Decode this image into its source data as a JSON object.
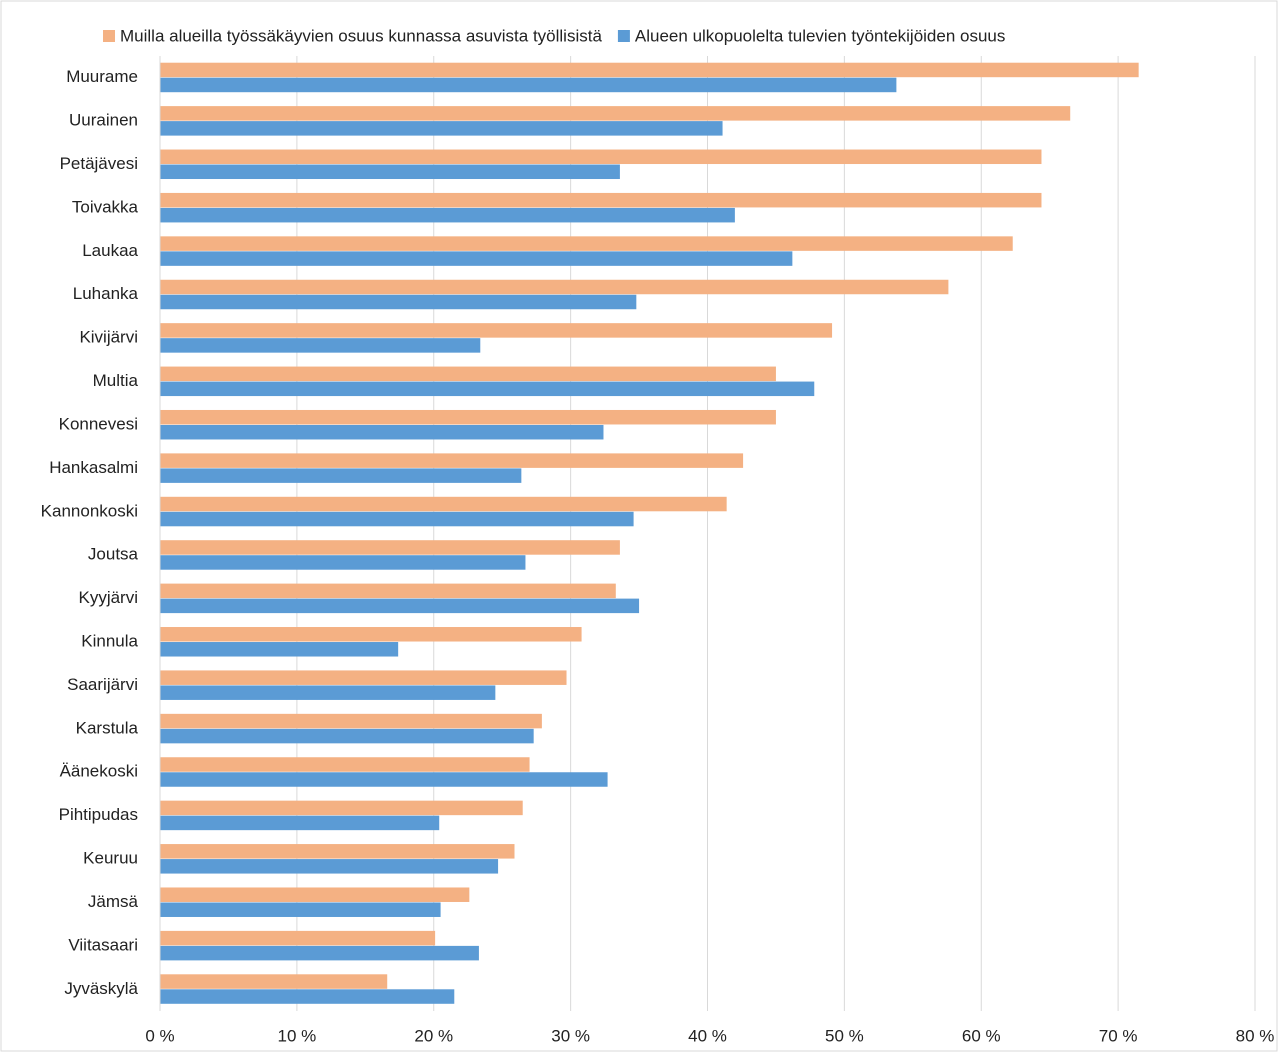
{
  "chart_data": {
    "type": "hbar",
    "categories": [
      "Muurame",
      "Uurainen",
      "Petäjävesi",
      "Toivakka",
      "Laukaa",
      "Luhanka",
      "Kivijärvi",
      "Multia",
      "Konnevesi",
      "Hankasalmi",
      "Kannonkoski",
      "Joutsa",
      "Kyyjärvi",
      "Kinnula",
      "Saarijärvi",
      "Karstula",
      "Äänekoski",
      "Pihtipudas",
      "Keuruu",
      "Jämsä",
      "Viitasaari",
      "Jyväskylä"
    ],
    "series": [
      {
        "name": "Muilla alueilla työssäkäyvien osuus kunnassa asuvista työllisistä",
        "color": "#f4b183",
        "values": [
          71.5,
          66.5,
          64.4,
          64.4,
          62.3,
          57.6,
          49.1,
          45.0,
          45.0,
          42.6,
          41.4,
          33.6,
          33.3,
          30.8,
          29.7,
          27.9,
          27.0,
          26.5,
          25.9,
          22.6,
          20.1,
          16.6
        ]
      },
      {
        "name": "Alueen ulkopuolelta tulevien työntekijöiden osuus",
        "color": "#5b9bd5",
        "values": [
          53.8,
          41.1,
          33.6,
          42.0,
          46.2,
          34.8,
          23.4,
          47.8,
          32.4,
          26.4,
          34.6,
          26.7,
          35.0,
          17.4,
          24.5,
          27.3,
          32.7,
          20.4,
          24.7,
          20.5,
          23.3,
          21.5
        ]
      }
    ],
    "xlim": [
      0,
      80
    ],
    "xticks": [
      {
        "value": 0,
        "label": "0 %"
      },
      {
        "value": 10,
        "label": "10 %"
      },
      {
        "value": 20,
        "label": "20 %"
      },
      {
        "value": 30,
        "label": "30 %"
      },
      {
        "value": 40,
        "label": "40 %"
      },
      {
        "value": 50,
        "label": "50 %"
      },
      {
        "value": 60,
        "label": "60 %"
      },
      {
        "value": 70,
        "label": "70 %"
      },
      {
        "value": 80,
        "label": "80 %"
      }
    ],
    "grid": true,
    "legend": "top"
  }
}
